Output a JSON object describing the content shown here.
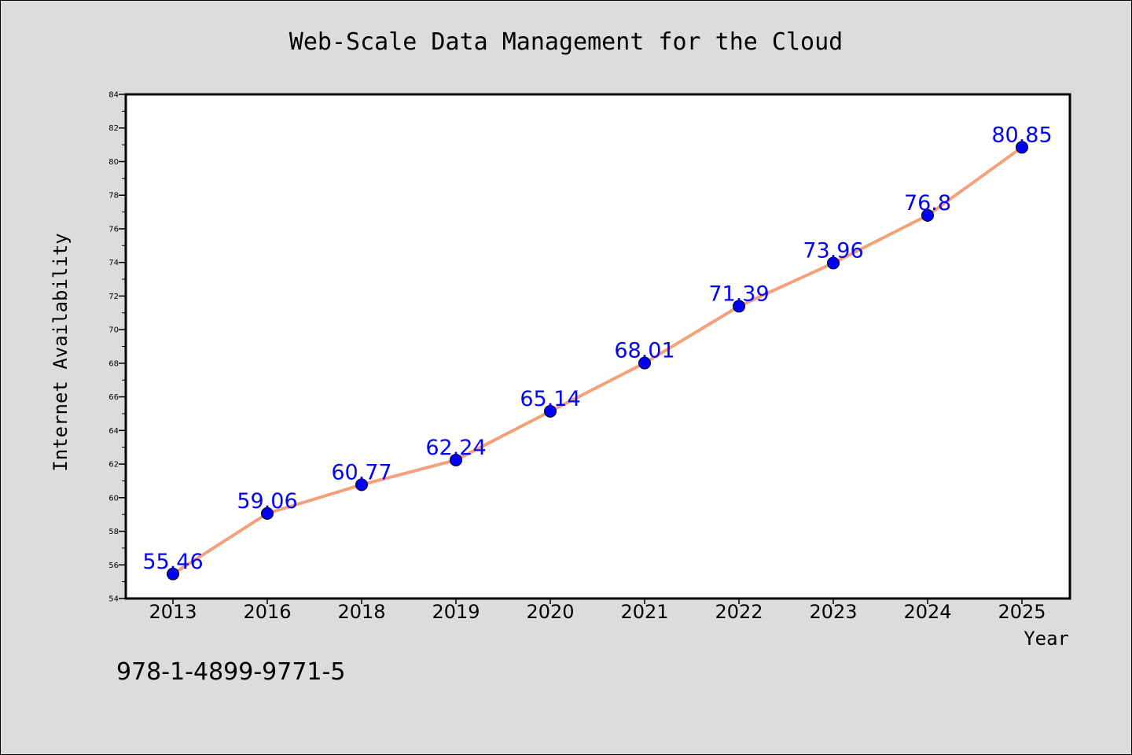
{
  "chart_data": {
    "type": "line",
    "title": "Web-Scale Data Management for the Cloud",
    "xlabel": "Year",
    "ylabel": "Internet Availability",
    "categories": [
      "2013",
      "2016",
      "2018",
      "2019",
      "2020",
      "2021",
      "2022",
      "2023",
      "2024",
      "2025"
    ],
    "values": [
      55.46,
      59.06,
      60.77,
      62.24,
      65.14,
      68.01,
      71.39,
      73.96,
      76.8,
      80.85
    ],
    "data_labels": [
      "55.46",
      "59.06",
      "60.77",
      "62.24",
      "65.14",
      "68.01",
      "71.39",
      "73.96",
      "76.8",
      "80.85"
    ],
    "ylim": [
      54,
      84
    ],
    "y_ticks": [
      "54",
      "56",
      "58",
      "60",
      "62",
      "64",
      "66",
      "68",
      "70",
      "72",
      "74",
      "76",
      "78",
      "80",
      "82",
      "84"
    ],
    "grid": false,
    "legend": "none",
    "colors": {
      "line": "#f4a07a",
      "marker": "#0000ff",
      "data_label": "#0000ff",
      "background": "#dcdcdc",
      "plot_background": "#ffffff"
    }
  },
  "footer_text": "978-1-4899-9771-5"
}
